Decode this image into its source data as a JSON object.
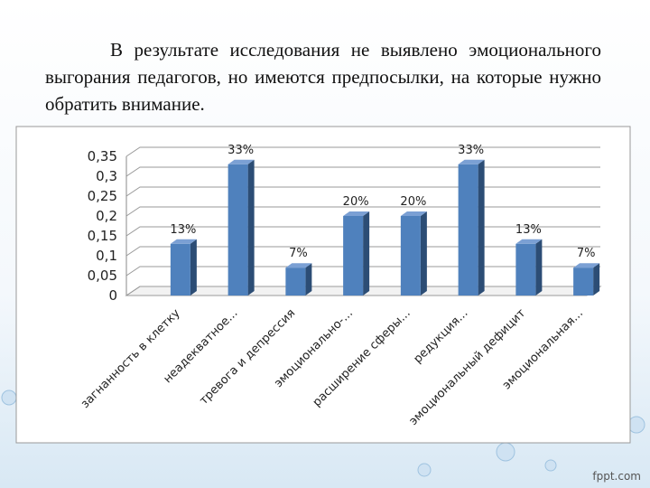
{
  "slide": {
    "text": "В результате исследования не выявлено эмоционального выгорания педагогов, но имеются предпосылки, на которые нужно обратить внимание.",
    "watermark": "fppt.com"
  },
  "chart_data": {
    "type": "bar3d",
    "categories": [
      "загнанность в клетку",
      "неадекватное...",
      "тревога и депрессия",
      "эмоционально-...",
      "расширение сферы...",
      "редукция...",
      "эмоциональный дефицит",
      "эмоциональная..."
    ],
    "values": [
      0.13,
      0.33,
      0.07,
      0.2,
      0.2,
      0.33,
      0.13,
      0.07
    ],
    "value_labels": [
      "13%",
      "33%",
      "7%",
      "20%",
      "20%",
      "33%",
      "13%",
      "7%"
    ],
    "color": "#4f81bd",
    "ylim": [
      0,
      0.35
    ],
    "yticks": [
      0,
      {
        "value": 0.05,
        "label": "0,05"
      },
      {
        "value": 0.1,
        "label": "0,1"
      },
      {
        "value": 0.15,
        "label": "0,15"
      },
      {
        "value": 0.2,
        "label": "0,2"
      },
      {
        "value": 0.25,
        "label": "0,25"
      },
      {
        "value": 0.3,
        "label": "0,3"
      },
      {
        "value": 0.35,
        "label": "0,35"
      }
    ],
    "grid": true
  }
}
